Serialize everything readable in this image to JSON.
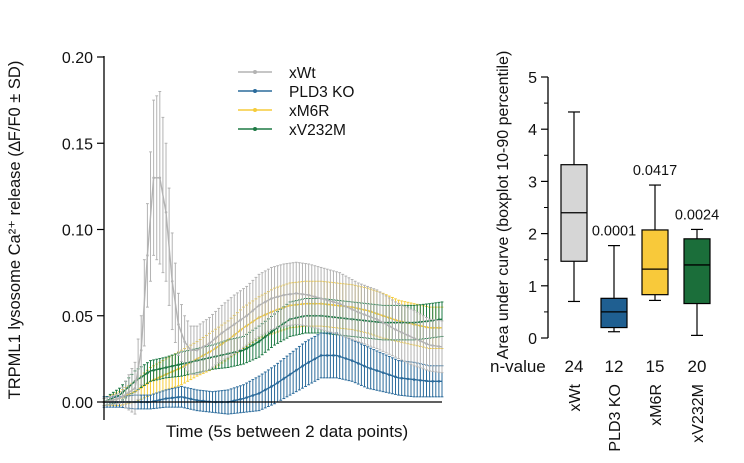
{
  "chart_data": [
    {
      "type": "line",
      "ylabel": "TRPML1 lysosome Ca²⁺ release (∆F/F0 ± SD)",
      "xlabel": "Time (5s between 2 data points)",
      "ylim": [
        0,
        0.2
      ],
      "yticks": [
        "0.00",
        "0.05",
        "0.10",
        "0.15",
        "0.20"
      ],
      "ytick_values": [
        0,
        0.05,
        0.1,
        0.15,
        0.2
      ],
      "n_points": 110,
      "legend_position": "top-center",
      "series": [
        {
          "name": "xWt",
          "color": "#b3b3b3",
          "x": [
            0,
            5,
            10,
            12,
            14,
            16,
            18,
            20,
            22,
            24,
            26,
            28,
            30,
            34,
            38,
            42,
            46,
            50,
            54,
            58,
            62,
            66,
            70,
            76,
            82,
            88,
            94,
            100,
            105,
            109
          ],
          "y": [
            0,
            0.002,
            0.008,
            0.03,
            0.085,
            0.13,
            0.13,
            0.11,
            0.07,
            0.045,
            0.035,
            0.03,
            0.03,
            0.034,
            0.04,
            0.045,
            0.05,
            0.056,
            0.06,
            0.062,
            0.063,
            0.062,
            0.06,
            0.057,
            0.052,
            0.048,
            0.042,
            0.037,
            0.033,
            0.032
          ],
          "sd": [
            0.002,
            0.003,
            0.015,
            0.02,
            0.03,
            0.045,
            0.05,
            0.04,
            0.028,
            0.018,
            0.015,
            0.014,
            0.014,
            0.015,
            0.016,
            0.017,
            0.017,
            0.018,
            0.018,
            0.018,
            0.018,
            0.018,
            0.018,
            0.018,
            0.017,
            0.017,
            0.016,
            0.016,
            0.015,
            0.015
          ]
        },
        {
          "name": "PLD3 KO",
          "color": "#2b6b9b",
          "x": [
            0,
            5,
            10,
            15,
            20,
            25,
            30,
            35,
            40,
            45,
            50,
            55,
            60,
            65,
            70,
            75,
            80,
            85,
            90,
            95,
            100,
            105,
            109
          ],
          "y": [
            0,
            0,
            0,
            0,
            0.002,
            0.003,
            0.001,
            0,
            0,
            0.002,
            0.005,
            0.01,
            0.016,
            0.022,
            0.027,
            0.027,
            0.024,
            0.02,
            0.017,
            0.014,
            0.013,
            0.012,
            0.012
          ],
          "sd": [
            0.003,
            0.003,
            0.004,
            0.004,
            0.005,
            0.006,
            0.006,
            0.006,
            0.007,
            0.008,
            0.01,
            0.011,
            0.012,
            0.013,
            0.013,
            0.013,
            0.012,
            0.012,
            0.011,
            0.01,
            0.01,
            0.009,
            0.009
          ]
        },
        {
          "name": "xM6R",
          "color": "#f5cc3b",
          "x": [
            0,
            5,
            10,
            15,
            20,
            25,
            30,
            35,
            40,
            45,
            50,
            55,
            60,
            65,
            70,
            75,
            80,
            85,
            90,
            95,
            100,
            105,
            109
          ],
          "y": [
            0,
            0.002,
            0.006,
            0.012,
            0.016,
            0.02,
            0.025,
            0.03,
            0.036,
            0.043,
            0.049,
            0.053,
            0.056,
            0.057,
            0.057,
            0.056,
            0.055,
            0.053,
            0.05,
            0.047,
            0.045,
            0.043,
            0.043
          ],
          "sd": [
            0.002,
            0.004,
            0.006,
            0.008,
            0.009,
            0.01,
            0.01,
            0.011,
            0.011,
            0.012,
            0.012,
            0.013,
            0.013,
            0.013,
            0.013,
            0.013,
            0.013,
            0.013,
            0.013,
            0.012,
            0.012,
            0.012,
            0.012
          ]
        },
        {
          "name": "xV232M",
          "color": "#1e7a45",
          "x": [
            0,
            5,
            10,
            15,
            20,
            25,
            30,
            35,
            40,
            45,
            50,
            55,
            60,
            65,
            70,
            75,
            80,
            85,
            90,
            95,
            100,
            105,
            109
          ],
          "y": [
            0,
            0.004,
            0.012,
            0.018,
            0.02,
            0.022,
            0.024,
            0.026,
            0.028,
            0.03,
            0.035,
            0.042,
            0.048,
            0.05,
            0.05,
            0.049,
            0.048,
            0.047,
            0.046,
            0.046,
            0.046,
            0.047,
            0.048
          ],
          "sd": [
            0.002,
            0.004,
            0.006,
            0.006,
            0.006,
            0.007,
            0.007,
            0.007,
            0.008,
            0.008,
            0.009,
            0.009,
            0.01,
            0.01,
            0.01,
            0.01,
            0.01,
            0.01,
            0.01,
            0.01,
            0.01,
            0.01,
            0.01
          ]
        }
      ]
    },
    {
      "type": "box",
      "ylabel": "Area under curve (boxplot 10-90 percentile)",
      "ylim": [
        0,
        5
      ],
      "yticks": [
        "0",
        "1",
        "2",
        "3",
        "4",
        "5"
      ],
      "ytick_values": [
        0,
        1,
        2,
        3,
        4,
        5
      ],
      "nvalue_label": "n-value",
      "boxes": [
        {
          "name": "xWt",
          "color": "#d6d6d6",
          "p10": 0.7,
          "q1": 1.47,
          "median": 2.4,
          "q3": 3.32,
          "p90": 4.33,
          "n": "24",
          "pvalue": ""
        },
        {
          "name": "PLD3 KO",
          "color": "#1f5f91",
          "p10": 0.12,
          "q1": 0.2,
          "median": 0.5,
          "q3": 0.76,
          "p90": 1.77,
          "n": "12",
          "pvalue": "0.0001"
        },
        {
          "name": "xM6R",
          "color": "#f8c93a",
          "p10": 0.72,
          "q1": 0.83,
          "median": 1.32,
          "q3": 2.07,
          "p90": 2.93,
          "n": "15",
          "pvalue": "0.0417"
        },
        {
          "name": "xV232M",
          "color": "#1b6e3a",
          "p10": 0.05,
          "q1": 0.66,
          "median": 1.4,
          "q3": 1.9,
          "p90": 2.08,
          "n": "20",
          "pvalue": "0.0024"
        }
      ]
    }
  ]
}
